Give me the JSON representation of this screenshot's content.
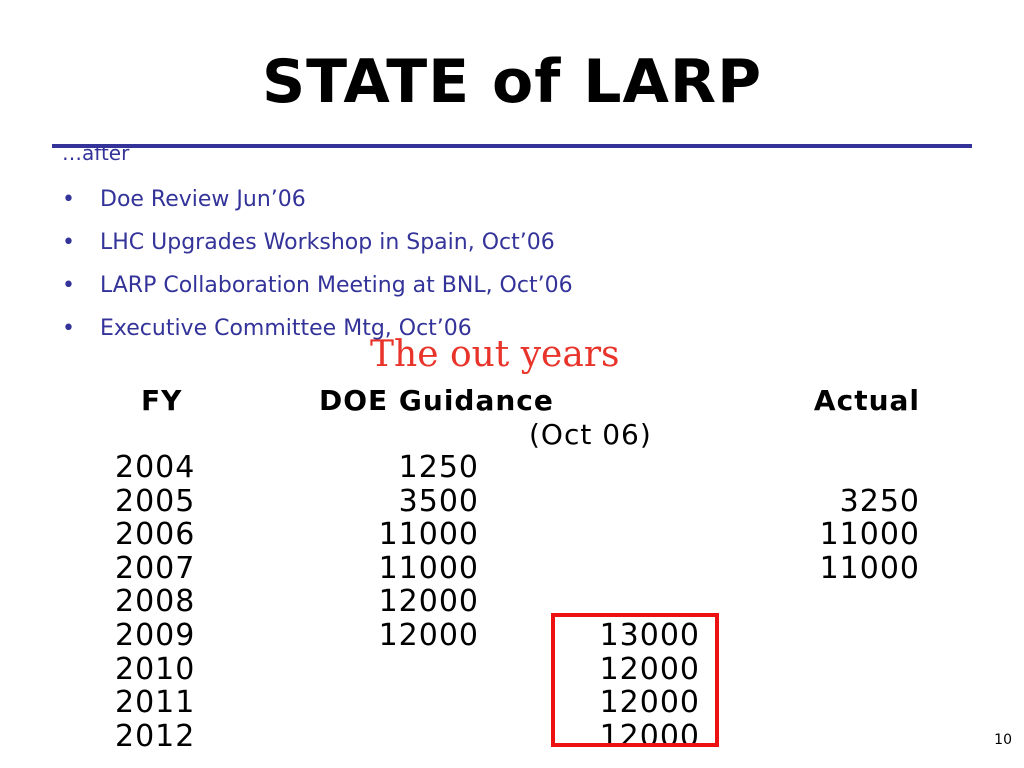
{
  "slide": {
    "title": "STATE of LARP",
    "intro": "…after",
    "bullets": [
      "Doe Review Jun’06",
      "LHC Upgrades Workshop in Spain, Oct’06",
      "LARP Collaboration Meeting at BNL, Oct’06",
      "Executive Committee Mtg, Oct’06"
    ],
    "bullet_symbol": "•",
    "page_number": "10",
    "accent_color": "#333399"
  },
  "figure": {
    "subtitle": "The out years",
    "subtitle_color": "#e8342a",
    "highlight_color": "#ee1111",
    "headers": {
      "fy": "FY",
      "doe": "DOE Guidance",
      "doe_sub": "(Oct 06)",
      "actual": "Actual"
    },
    "rows": [
      {
        "fy": "2004",
        "doe": "1250",
        "proj": "",
        "actual": ""
      },
      {
        "fy": "2005",
        "doe": "3500",
        "proj": "",
        "actual": "3250"
      },
      {
        "fy": "2006",
        "doe": "11000",
        "proj": "",
        "actual": "11000"
      },
      {
        "fy": "2007",
        "doe": "11000",
        "proj": "",
        "actual": "11000"
      },
      {
        "fy": "2008",
        "doe": "12000",
        "proj": "",
        "actual": ""
      },
      {
        "fy": "2009",
        "doe": "12000",
        "proj": "13000",
        "actual": ""
      },
      {
        "fy": "2010",
        "doe": "",
        "proj": "12000",
        "actual": ""
      },
      {
        "fy": "2011",
        "doe": "",
        "proj": "12000",
        "actual": ""
      },
      {
        "fy": "2012",
        "doe": "",
        "proj": "12000",
        "actual": ""
      }
    ]
  }
}
